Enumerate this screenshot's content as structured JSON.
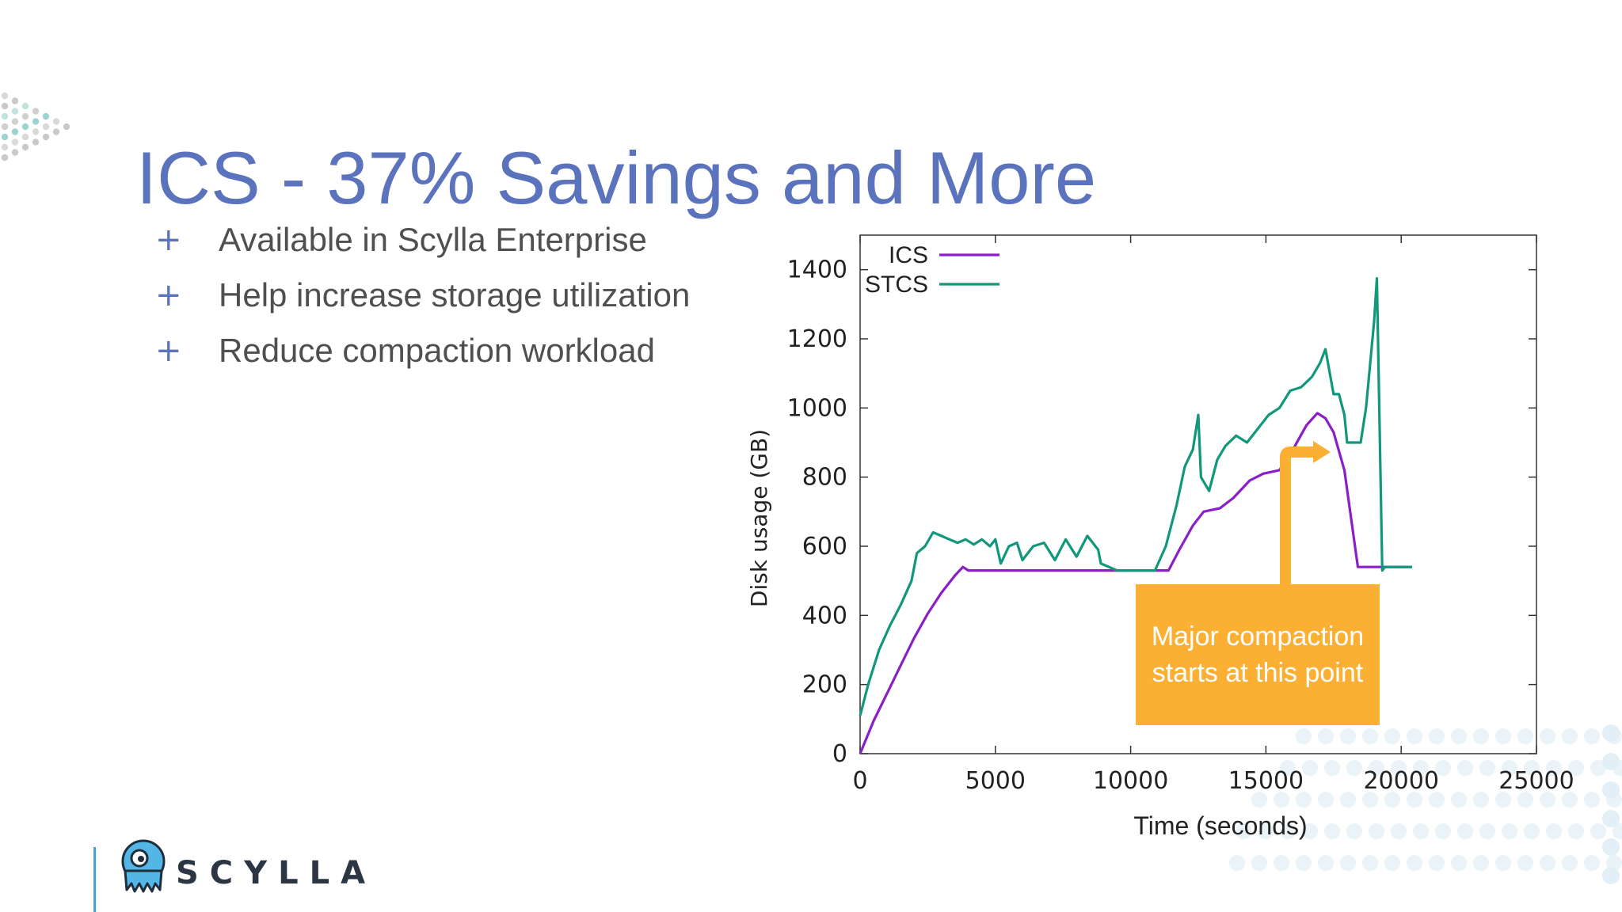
{
  "slide": {
    "title": "ICS - 37% Savings and More",
    "bullets": [
      "Available in Scylla Enterprise",
      "Help increase storage utilization",
      "Reduce compaction workload"
    ],
    "bullet_marker": "+"
  },
  "logo": {
    "text": "SCYLLA",
    "icon": "scylla-monster-icon"
  },
  "colors": {
    "title": "#5b73bd",
    "ics": "#8a1fc8",
    "stcs": "#11977a",
    "callout": "#fbb034",
    "logo_accent": "#4aa3c8"
  },
  "callout": {
    "lines": [
      "Major compaction",
      "starts at this point"
    ]
  },
  "chart_data": {
    "type": "line",
    "title": "",
    "xlabel": "Time (seconds)",
    "ylabel": "Disk usage (GB)",
    "xlim": [
      0,
      25000
    ],
    "ylim": [
      0,
      1500
    ],
    "xticks": [
      0,
      5000,
      10000,
      15000,
      20000,
      25000
    ],
    "yticks": [
      0,
      200,
      400,
      600,
      800,
      1000,
      1200,
      1400
    ],
    "grid": false,
    "legend": "top-left",
    "series": [
      {
        "name": "ICS",
        "color": "#8a1fc8",
        "x": [
          0,
          500,
          1000,
          1500,
          2000,
          2500,
          3000,
          3500,
          3800,
          4000,
          6000,
          8000,
          9000,
          10000,
          11000,
          11400,
          11800,
          12300,
          12700,
          13300,
          13800,
          14400,
          14900,
          15500,
          16000,
          16500,
          16900,
          17200,
          17500,
          17900,
          18400,
          19000,
          20000,
          20400
        ],
        "y": [
          0,
          95,
          175,
          255,
          335,
          405,
          465,
          515,
          540,
          530,
          530,
          530,
          530,
          530,
          530,
          530,
          590,
          660,
          700,
          710,
          740,
          790,
          810,
          820,
          880,
          950,
          985,
          970,
          930,
          820,
          540,
          540,
          540,
          540
        ]
      },
      {
        "name": "STCS",
        "color": "#11977a",
        "x": [
          0,
          300,
          700,
          1100,
          1500,
          1900,
          2100,
          2400,
          2700,
          3000,
          3300,
          3600,
          3900,
          4200,
          4500,
          4800,
          5000,
          5200,
          5500,
          5800,
          6000,
          6400,
          6800,
          7200,
          7600,
          8000,
          8400,
          8800,
          8900,
          9500,
          10500,
          10900,
          11300,
          11700,
          12000,
          12300,
          12500,
          12600,
          12900,
          13200,
          13500,
          13900,
          14300,
          14700,
          15100,
          15500,
          15900,
          16300,
          16700,
          17000,
          17200,
          17500,
          17700,
          17900,
          18000,
          18500,
          18700,
          19000,
          19100,
          19300,
          19400,
          20400
        ],
        "y": [
          110,
          200,
          300,
          370,
          430,
          500,
          580,
          600,
          640,
          630,
          620,
          610,
          620,
          605,
          620,
          600,
          620,
          550,
          600,
          610,
          560,
          600,
          610,
          560,
          620,
          570,
          630,
          590,
          550,
          530,
          530,
          530,
          600,
          720,
          830,
          880,
          980,
          800,
          760,
          850,
          890,
          920,
          900,
          940,
          980,
          1000,
          1050,
          1060,
          1090,
          1130,
          1170,
          1040,
          1040,
          980,
          900,
          900,
          1000,
          1250,
          1375,
          530,
          540,
          540
        ]
      }
    ]
  }
}
